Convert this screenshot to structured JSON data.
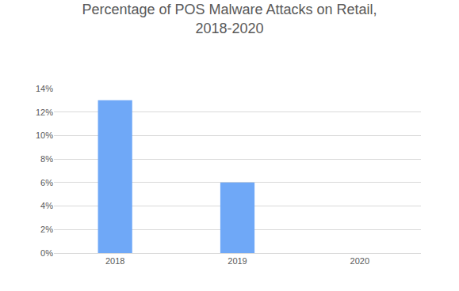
{
  "chart_data": {
    "type": "bar",
    "title": "Percentage of POS Malware Attacks on Retail, 2018-2020",
    "categories": [
      "2018",
      "2019",
      "2020"
    ],
    "values": [
      13,
      6,
      0
    ],
    "color": "#6fa8f7",
    "ylim": [
      0,
      14
    ],
    "yticks": [
      {
        "value": 0,
        "label": "0%"
      },
      {
        "value": 2,
        "label": "2%"
      },
      {
        "value": 4,
        "label": "4%"
      },
      {
        "value": 6,
        "label": "6%"
      },
      {
        "value": 8,
        "label": "8%"
      },
      {
        "value": 10,
        "label": "10%"
      },
      {
        "value": 12,
        "label": "12%"
      },
      {
        "value": 14,
        "label": "14%"
      }
    ],
    "grid": true
  }
}
